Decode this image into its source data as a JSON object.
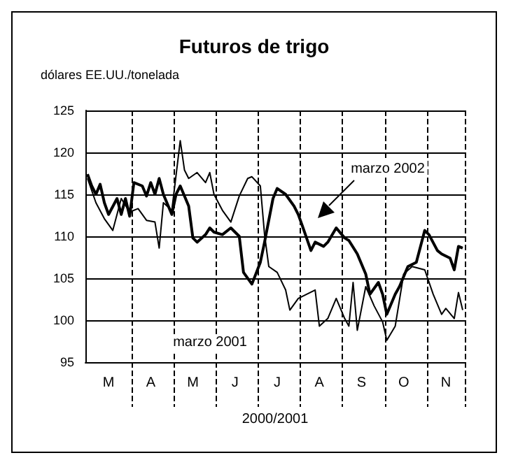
{
  "chart_data": {
    "type": "line",
    "title": "Futuros de trigo",
    "ylabel": "dólares EE.UU./tonelada",
    "xlabel": "2000/2001",
    "categories": [
      null,
      null,
      null,
      null,
      null,
      "M",
      null,
      null,
      null,
      null,
      null,
      null,
      null,
      null,
      null,
      "A",
      null,
      null,
      null,
      null,
      null,
      null,
      null,
      null,
      null,
      "M",
      null,
      null,
      null,
      null,
      null,
      null,
      null,
      null,
      null,
      "J",
      null,
      null,
      null,
      null,
      null,
      null,
      null,
      null,
      null,
      "J",
      null,
      null,
      null,
      null,
      null,
      null,
      null,
      null,
      null,
      "A",
      null,
      null,
      null,
      null,
      null,
      null,
      null,
      null,
      null,
      "S",
      null,
      null,
      null,
      null,
      null,
      null,
      null,
      null,
      null,
      "O",
      null,
      null,
      null,
      null,
      null,
      null,
      null,
      null,
      null,
      "N",
      null,
      null,
      null,
      null
    ],
    "ylim": [
      95,
      125
    ],
    "yticks": [
      95,
      100,
      105,
      110,
      115,
      120,
      125
    ],
    "grid": true,
    "marker": "none",
    "line_style": "solid",
    "annotations": [
      "marzo 2002",
      "marzo 2001"
    ],
    "series": [
      {
        "color": "#000000",
        "values": [
          117.4,
          116.0,
          115.0,
          116.2,
          114.0,
          112.6,
          null,
          114.5,
          112.6,
          114.5,
          112.4,
          116.4,
          null,
          116.0,
          114.8,
          116.4,
          115.0,
          116.9,
          115.0,
          null,
          112.6,
          115.0,
          116.0,
          null,
          113.6,
          109.8,
          109.3,
          null,
          110.2,
          111.0,
          110.5,
          null,
          110.2,
          null,
          111.0,
          null,
          110.0,
          105.7,
          null,
          104.3,
          null,
          106.9,
          109.3,
          null,
          114.5,
          115.7,
          null,
          115.0,
          null,
          113.6,
          112.6,
          111.2,
          null,
          108.3,
          109.3,
          null,
          108.8,
          109.3,
          null,
          111.0,
          null,
          109.8,
          109.5,
          null,
          107.9,
          null,
          105.5,
          103.1,
          null,
          104.5,
          103.1,
          100.7,
          null,
          103.1,
          104.0,
          null,
          106.4,
          null,
          106.9,
          null,
          110.7,
          110.2,
          null,
          108.3,
          107.9,
          null,
          107.4,
          106.0,
          108.8,
          108.6
        ]
      },
      {
        "color": "#000000",
        "values": [
          116.9,
          null,
          114.0,
          null,
          112.1,
          null,
          110.7,
          null,
          114.5,
          null,
          112.9,
          null,
          113.3,
          null,
          111.9,
          null,
          111.7,
          108.6,
          114.0,
          null,
          113.1,
          null,
          121.4,
          117.9,
          116.9,
          null,
          117.6,
          null,
          116.4,
          117.6,
          115.0,
          null,
          113.1,
          null,
          111.7,
          null,
          114.8,
          null,
          116.9,
          117.1,
          null,
          116.0,
          110.2,
          106.4,
          null,
          105.7,
          null,
          103.6,
          101.2,
          null,
          102.6,
          null,
          103.1,
          null,
          103.6,
          99.3,
          null,
          100.2,
          null,
          102.6,
          null,
          100.2,
          99.3,
          104.5,
          98.8,
          null,
          104.0,
          null,
          101.7,
          null,
          99.8,
          97.6,
          null,
          99.3,
          null,
          105.5,
          null,
          106.4,
          null,
          null,
          106.0,
          null,
          103.1,
          null,
          100.7,
          101.4,
          null,
          100.2,
          103.3,
          101.2
        ]
      }
    ]
  }
}
